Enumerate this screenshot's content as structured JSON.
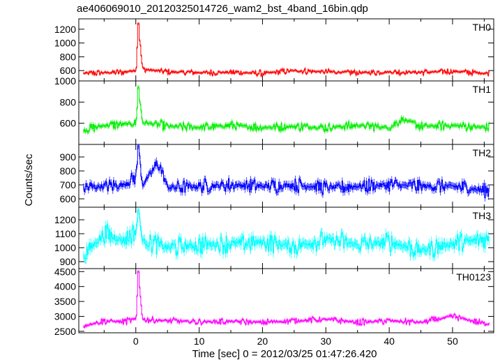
{
  "chart_data": {
    "type": "line",
    "title": "ae406069010_20120325014726_wam2_bst_4band_16bin.qdp",
    "xlabel": "Time [sec] 0 = 2012/03/25 01:47:26.420",
    "ylabel": "Counts/sec",
    "xlim": [
      -9,
      56.5
    ],
    "x_ticks": [
      0,
      10,
      20,
      30,
      40,
      50
    ],
    "grid": false,
    "panels": [
      {
        "name": "TH0",
        "color": "#ff0000",
        "ylim": [
          450,
          1350
        ],
        "y_ticks": [
          600,
          800,
          1000,
          1200
        ],
        "baseline": 560,
        "amplitude": 45,
        "spike": 1280,
        "series": [
          {
            "name": "TH0",
            "x": [
              -8,
              -5,
              -2,
              0,
              0.3,
              1,
              5,
              10,
              15,
              20,
              25,
              30,
              35,
              40,
              45,
              50,
              55
            ],
            "y": [
              560,
              570,
              575,
              610,
              1280,
              620,
              580,
              570,
              575,
              560,
              600,
              580,
              570,
              580,
              575,
              590,
              560
            ]
          }
        ]
      },
      {
        "name": "TH1",
        "color": "#00ee00",
        "ylim": [
          400,
          1000
        ],
        "y_ticks": [
          600,
          800,
          1000
        ],
        "baseline": 560,
        "amplitude": 45,
        "spike": 940,
        "series": [
          {
            "name": "TH1",
            "x": [
              -8,
              -5,
              -2,
              0,
              0.3,
              1,
              5,
              10,
              15,
              20,
              25,
              30,
              35,
              40,
              42,
              45,
              50,
              55
            ],
            "y": [
              540,
              580,
              590,
              600,
              940,
              610,
              570,
              560,
              580,
              560,
              570,
              560,
              580,
              560,
              640,
              570,
              580,
              560
            ]
          }
        ]
      },
      {
        "name": "TH2",
        "color": "#0000ff",
        "ylim": [
          540,
          990
        ],
        "y_ticks": [
          600,
          700,
          800,
          900
        ],
        "baseline": 690,
        "amplitude": 55,
        "spike": 980,
        "series": [
          {
            "name": "TH2",
            "x": [
              -8,
              -5,
              -2,
              0,
              0.3,
              1,
              3.5,
              5,
              10,
              15,
              20,
              25,
              30,
              35,
              40,
              45,
              50,
              55
            ],
            "y": [
              680,
              690,
              700,
              760,
              980,
              700,
              860,
              680,
              690,
              700,
              690,
              700,
              680,
              690,
              700,
              690,
              690,
              660
            ]
          }
        ]
      },
      {
        "name": "TH3",
        "color": "#00ffff",
        "ylim": [
          850,
          1290
        ],
        "y_ticks": [
          900,
          1000,
          1100,
          1200
        ],
        "baseline": 1030,
        "amplitude": 75,
        "spike": 1270,
        "series": [
          {
            "name": "TH3",
            "x": [
              -8,
              -5,
              -2,
              0,
              0.3,
              1,
              5,
              10,
              15,
              20,
              25,
              30,
              35,
              40,
              45,
              50,
              55
            ],
            "y": [
              960,
              1100,
              1050,
              1120,
              1270,
              1050,
              1000,
              1020,
              1030,
              1040,
              1010,
              1060,
              1020,
              1040,
              980,
              1030,
              1060
            ]
          }
        ]
      },
      {
        "name": "TH0123",
        "color": "#ff00ff",
        "ylim": [
          2450,
          4600
        ],
        "y_ticks": [
          2500,
          3000,
          3500,
          4000,
          4500
        ],
        "baseline": 2830,
        "amplitude": 110,
        "spike": 4500,
        "series": [
          {
            "name": "TH0123",
            "x": [
              -8,
              -5,
              -2,
              0,
              0.3,
              1,
              5,
              10,
              15,
              20,
              25,
              30,
              35,
              40,
              45,
              50,
              55
            ],
            "y": [
              2700,
              2850,
              2820,
              2900,
              4500,
              2900,
              2850,
              2820,
              2830,
              2800,
              2850,
              2900,
              2800,
              2850,
              2800,
              3000,
              2750
            ]
          }
        ]
      }
    ]
  }
}
